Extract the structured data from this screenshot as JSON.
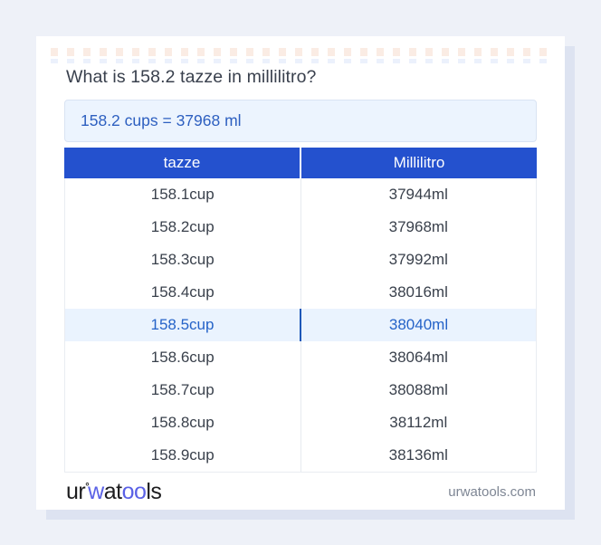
{
  "card": {
    "title": "What is 158.2 tazze in millilitro?",
    "answer": "158.2 cups = 37968 ml"
  },
  "table": {
    "headers": [
      "tazze",
      "Millilitro"
    ],
    "rows": [
      {
        "cup": "158.1cup",
        "ml": "37944ml",
        "highlight": false
      },
      {
        "cup": "158.2cup",
        "ml": "37968ml",
        "highlight": false
      },
      {
        "cup": "158.3cup",
        "ml": "37992ml",
        "highlight": false
      },
      {
        "cup": "158.4cup",
        "ml": "38016ml",
        "highlight": false
      },
      {
        "cup": "158.5cup",
        "ml": "38040ml",
        "highlight": true
      },
      {
        "cup": "158.6cup",
        "ml": "38064ml",
        "highlight": false
      },
      {
        "cup": "158.7cup",
        "ml": "38088ml",
        "highlight": false
      },
      {
        "cup": "158.8cup",
        "ml": "38112ml",
        "highlight": false
      },
      {
        "cup": "158.9cup",
        "ml": "38136ml",
        "highlight": false
      }
    ]
  },
  "footer": {
    "logo": {
      "part_ur": "ur",
      "degree": "°",
      "part_w": "w",
      "part_at": "at",
      "part_oo": "oo",
      "part_ls": "ls"
    },
    "site": "urwatools.com"
  },
  "colors": {
    "header_blue": "#2451ce",
    "highlight_bg": "#eaf3fe",
    "highlight_text": "#2563c8",
    "highlight_divider": "#1d57b8",
    "answer_bg": "#ecf4fe",
    "answer_text": "#2d5fc0",
    "title_text": "#39404d",
    "logo_blue": "#5a61e6",
    "page_bg": "#eef1f8",
    "card_shadow": "#dde3f1"
  }
}
